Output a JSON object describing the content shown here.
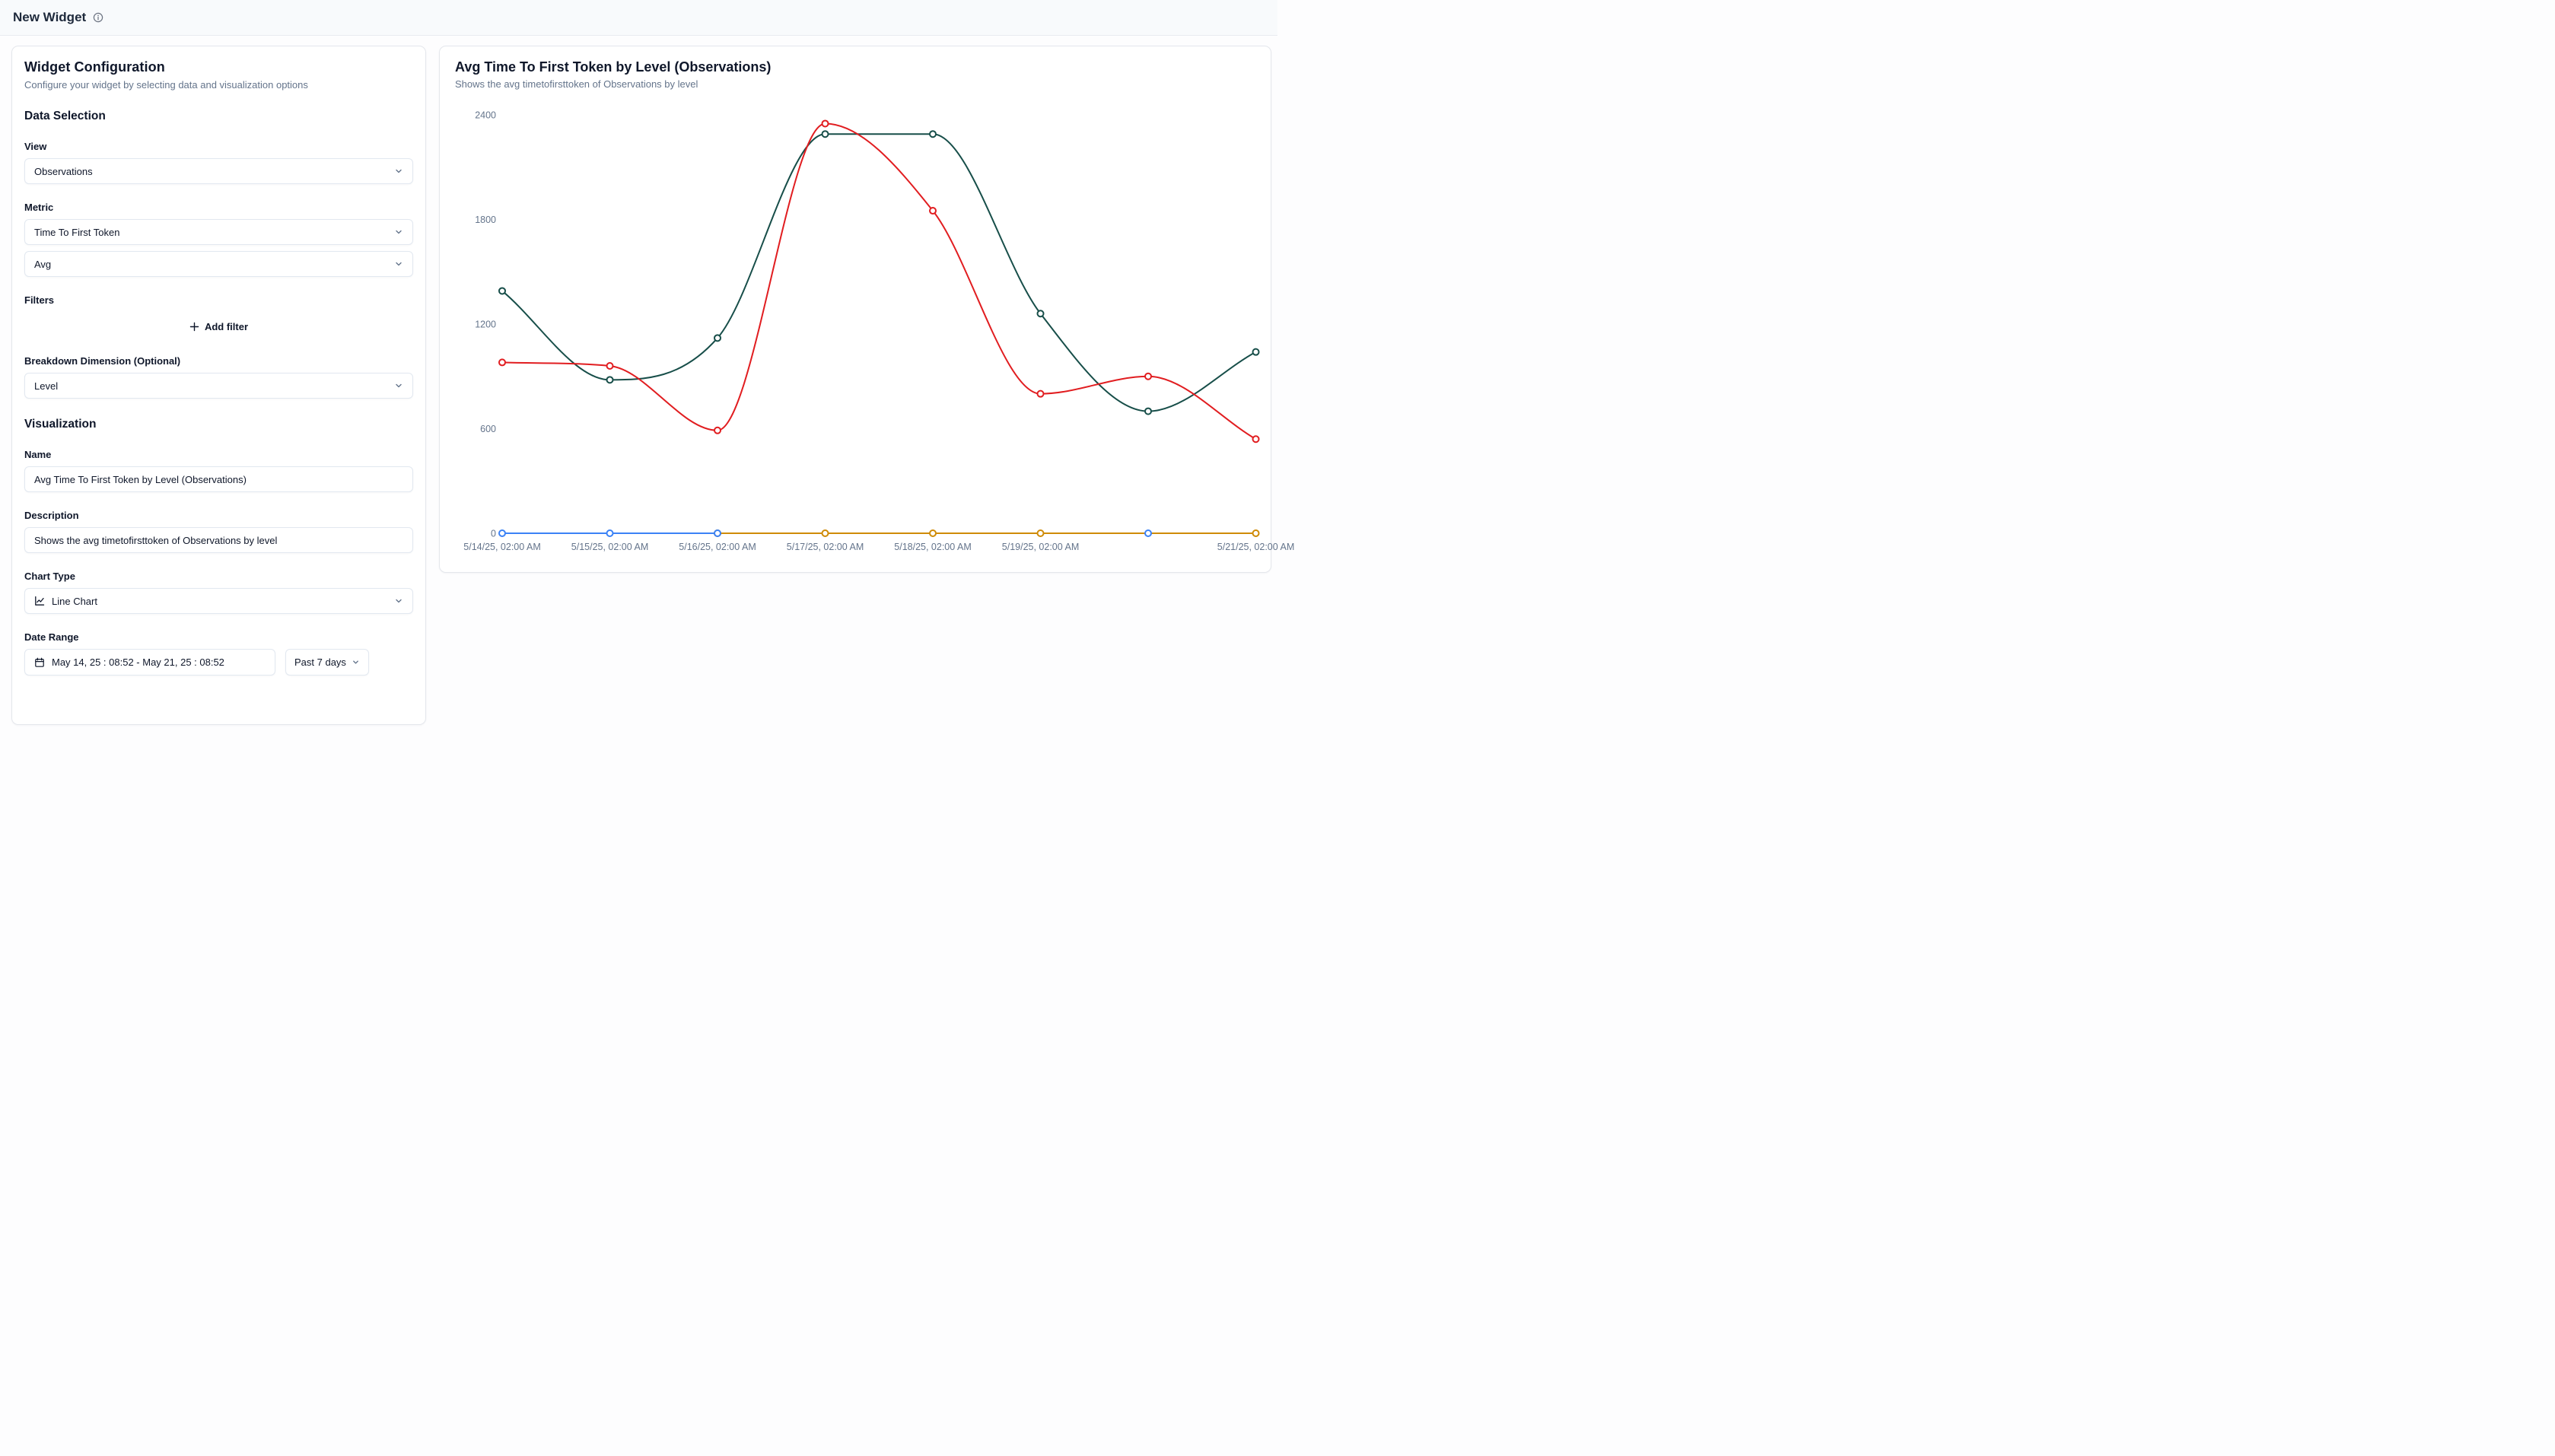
{
  "header": {
    "title": "New Widget"
  },
  "config_panel": {
    "title": "Widget Configuration",
    "subtitle": "Configure your widget by selecting data and visualization options",
    "data_selection": {
      "heading": "Data Selection",
      "view_label": "View",
      "view_value": "Observations",
      "metric_label": "Metric",
      "metric_value": "Time To First Token",
      "aggregation_value": "Avg",
      "filters_label": "Filters",
      "add_filter_label": "Add filter",
      "breakdown_label": "Breakdown Dimension (Optional)",
      "breakdown_value": "Level"
    },
    "visualization": {
      "heading": "Visualization",
      "name_label": "Name",
      "name_value": "Avg Time To First Token by Level (Observations)",
      "description_label": "Description",
      "description_value": "Shows the avg timetofirsttoken of Observations by level",
      "chart_type_label": "Chart Type",
      "chart_type_value": "Line Chart",
      "date_range_label": "Date Range",
      "date_range_value": "May 14, 25 : 08:52 - May 21, 25 : 08:52",
      "date_preset_value": "Past 7 days"
    }
  },
  "chart_panel": {
    "title": "Avg Time To First Token by Level (Observations)",
    "subtitle": "Shows the avg timetofirsttoken of Observations by level"
  },
  "chart_data": {
    "type": "line",
    "title": "Avg Time To First Token by Level (Observations)",
    "x_labels": [
      "5/14/25, 02:00 AM",
      "5/15/25, 02:00 AM",
      "5/16/25, 02:00 AM",
      "5/17/25, 02:00 AM",
      "5/18/25, 02:00 AM",
      "5/19/25, 02:00 AM",
      "",
      "5/21/25, 02:00 AM"
    ],
    "y_ticks": [
      0,
      600,
      1200,
      1800,
      2400
    ],
    "ylim": [
      0,
      2400
    ],
    "grid": false,
    "legend": "none",
    "smoothing": "monotone",
    "series": [
      {
        "name": "blue-zero-series",
        "color": "#3b82f6",
        "values": [
          0,
          0,
          0,
          null,
          null,
          null,
          0,
          null
        ]
      },
      {
        "name": "amber-zero-series",
        "color": "#cf8b07",
        "values": [
          null,
          null,
          0,
          0,
          0,
          0,
          null,
          0
        ]
      },
      {
        "name": "teal-series",
        "color": "#174e49",
        "values": [
          1390,
          880,
          1120,
          2290,
          2290,
          1260,
          700,
          1040
        ]
      },
      {
        "name": "red-series",
        "color": "#e11d20",
        "values": [
          980,
          960,
          590,
          2350,
          1850,
          800,
          900,
          540
        ]
      }
    ],
    "marker": {
      "radius": 4,
      "fill": "#ffffff",
      "stroke_width": 2
    },
    "line_width": 2,
    "draw_order": {
      "lines": [
        0,
        1,
        2,
        3
      ],
      "markers": [
        1,
        0,
        2,
        3
      ]
    }
  }
}
